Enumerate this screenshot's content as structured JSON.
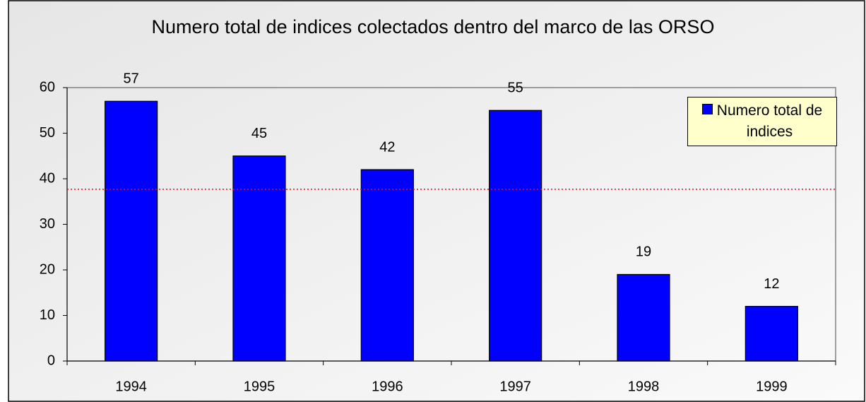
{
  "chart_data": {
    "type": "bar",
    "title": "Numero total de indices colectados dentro del marco de las ORSO",
    "categories": [
      "1994",
      "1995",
      "1996",
      "1997",
      "1998",
      "1999"
    ],
    "series": [
      {
        "name": "Numero total de indices",
        "color": "#0000ff",
        "values": [
          57,
          45,
          42,
          55,
          19,
          12
        ]
      }
    ],
    "ylim": [
      0,
      60
    ],
    "yticks": [
      0,
      10,
      20,
      30,
      40,
      50,
      60
    ],
    "reference_line": {
      "value": 37.7,
      "color": "#ff0000"
    },
    "legend": "top-right",
    "data_labels": true
  }
}
